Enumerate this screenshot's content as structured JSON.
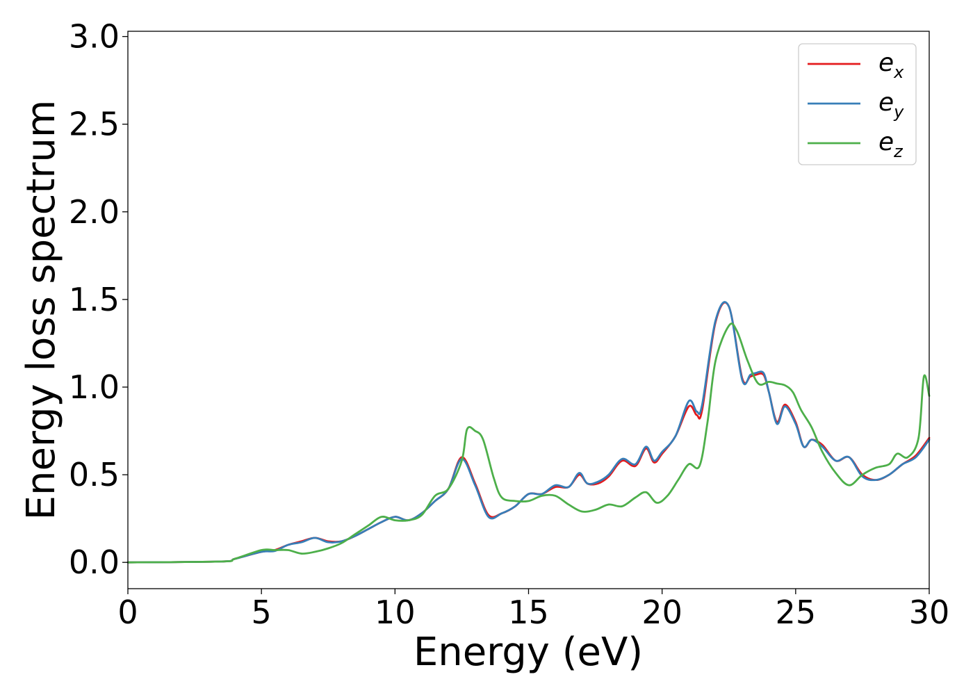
{
  "chart_data": {
    "type": "line",
    "xlabel": "Energy (eV)",
    "ylabel": "Energy loss spectrum",
    "xlim": [
      0,
      30
    ],
    "ylim": [
      -0.15,
      3.03
    ],
    "xticks": [
      0,
      5,
      10,
      15,
      20,
      25,
      30
    ],
    "xtick_labels": [
      "0",
      "5",
      "10",
      "15",
      "20",
      "25",
      "30"
    ],
    "yticks": [
      0.0,
      0.5,
      1.0,
      1.5,
      2.0,
      2.5,
      3.0
    ],
    "ytick_labels": [
      "0.0",
      "0.5",
      "1.0",
      "1.5",
      "2.0",
      "2.5",
      "3.0"
    ],
    "grid": false,
    "legend_position": "top-right",
    "series": [
      {
        "name": "e_x",
        "legend_base": "e",
        "legend_sub": "x",
        "color": "#e41a1c",
        "x": [
          0,
          3.5,
          4,
          5,
          5.5,
          6,
          6.5,
          7,
          7.5,
          8,
          8.5,
          9,
          9.5,
          10,
          10.5,
          11,
          11.5,
          12,
          12.5,
          13,
          13.5,
          14,
          14.5,
          15,
          15.5,
          16,
          16.5,
          16.9,
          17.2,
          17.6,
          18,
          18.5,
          19,
          19.4,
          19.7,
          20,
          20.5,
          21,
          21.3,
          21.5,
          22,
          22.5,
          23,
          23.3,
          23.5,
          23.8,
          24,
          24.3,
          24.6,
          25,
          25.3,
          25.6,
          26,
          26.5,
          27,
          27.5,
          28,
          28.5,
          29,
          29.5,
          30
        ],
        "values": [
          0.0,
          0.005,
          0.02,
          0.06,
          0.07,
          0.1,
          0.12,
          0.14,
          0.12,
          0.12,
          0.15,
          0.19,
          0.23,
          0.26,
          0.24,
          0.28,
          0.35,
          0.42,
          0.6,
          0.45,
          0.27,
          0.28,
          0.32,
          0.39,
          0.39,
          0.43,
          0.43,
          0.5,
          0.45,
          0.45,
          0.49,
          0.58,
          0.55,
          0.65,
          0.57,
          0.62,
          0.72,
          0.89,
          0.84,
          0.87,
          1.37,
          1.46,
          1.05,
          1.06,
          1.07,
          1.07,
          0.97,
          0.8,
          0.9,
          0.8,
          0.66,
          0.7,
          0.67,
          0.58,
          0.6,
          0.5,
          0.47,
          0.5,
          0.56,
          0.61,
          0.71
        ]
      },
      {
        "name": "e_y",
        "legend_base": "e",
        "legend_sub": "y",
        "color": "#377eb8",
        "x": [
          0,
          3.5,
          4,
          5,
          5.5,
          6,
          6.5,
          7,
          7.5,
          8,
          8.5,
          9,
          9.5,
          10,
          10.5,
          11,
          11.5,
          12,
          12.5,
          13,
          13.5,
          14,
          14.5,
          15,
          15.5,
          16,
          16.5,
          16.9,
          17.2,
          17.6,
          18,
          18.5,
          19,
          19.4,
          19.7,
          20,
          20.5,
          21,
          21.3,
          21.5,
          22,
          22.5,
          23,
          23.3,
          23.5,
          23.8,
          24,
          24.3,
          24.6,
          25,
          25.3,
          25.6,
          26,
          26.5,
          27,
          27.5,
          28,
          28.5,
          29,
          29.5,
          30
        ],
        "values": [
          0.0,
          0.005,
          0.02,
          0.06,
          0.065,
          0.1,
          0.115,
          0.14,
          0.115,
          0.12,
          0.15,
          0.19,
          0.23,
          0.26,
          0.24,
          0.28,
          0.35,
          0.42,
          0.59,
          0.44,
          0.26,
          0.28,
          0.32,
          0.39,
          0.39,
          0.44,
          0.43,
          0.51,
          0.45,
          0.46,
          0.5,
          0.59,
          0.56,
          0.66,
          0.58,
          0.63,
          0.72,
          0.92,
          0.86,
          0.9,
          1.38,
          1.46,
          1.04,
          1.07,
          1.08,
          1.08,
          0.97,
          0.79,
          0.89,
          0.79,
          0.66,
          0.7,
          0.66,
          0.58,
          0.6,
          0.49,
          0.47,
          0.5,
          0.56,
          0.6,
          0.7
        ]
      },
      {
        "name": "e_z",
        "legend_base": "e",
        "legend_sub": "z",
        "color": "#4daf4a",
        "x": [
          0,
          3.5,
          4,
          5,
          5.5,
          6,
          6.5,
          7,
          7.5,
          8,
          8.5,
          9,
          9.5,
          10,
          10.5,
          11,
          11.5,
          12,
          12.5,
          12.7,
          13,
          13.3,
          13.7,
          14,
          14.5,
          15,
          15.5,
          16,
          16.5,
          17,
          17.5,
          18,
          18.5,
          19,
          19.4,
          19.8,
          20.2,
          20.6,
          21,
          21.4,
          21.7,
          22,
          22.5,
          22.8,
          23.2,
          23.6,
          24,
          24.3,
          24.6,
          24.9,
          25.2,
          25.6,
          26,
          26.5,
          27,
          27.5,
          28,
          28.5,
          28.8,
          29.2,
          29.6,
          29.8,
          30
        ],
        "values": [
          0.0,
          0.005,
          0.02,
          0.07,
          0.07,
          0.07,
          0.05,
          0.06,
          0.08,
          0.11,
          0.16,
          0.21,
          0.26,
          0.24,
          0.24,
          0.27,
          0.38,
          0.42,
          0.58,
          0.76,
          0.75,
          0.7,
          0.48,
          0.37,
          0.35,
          0.35,
          0.38,
          0.38,
          0.33,
          0.29,
          0.3,
          0.33,
          0.32,
          0.37,
          0.4,
          0.34,
          0.38,
          0.47,
          0.56,
          0.55,
          0.8,
          1.15,
          1.35,
          1.32,
          1.15,
          1.02,
          1.03,
          1.02,
          1.01,
          0.97,
          0.87,
          0.77,
          0.63,
          0.51,
          0.44,
          0.5,
          0.54,
          0.56,
          0.62,
          0.6,
          0.71,
          1.06,
          0.95
        ]
      }
    ]
  }
}
